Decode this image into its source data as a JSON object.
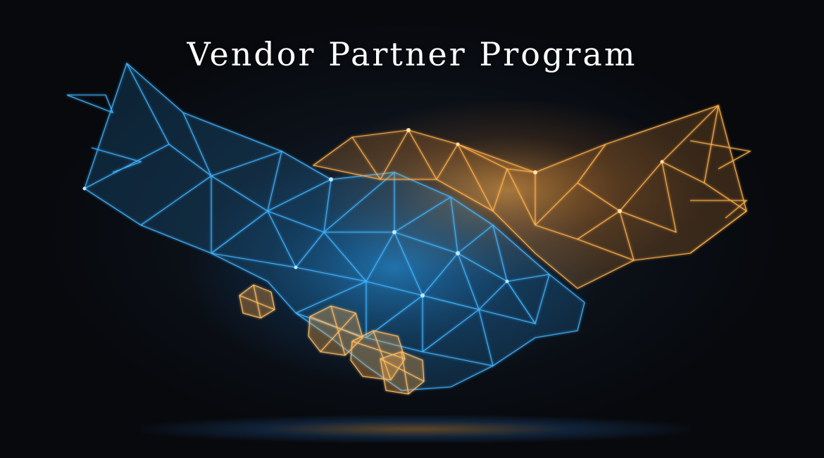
{
  "banner": {
    "title": "Vendor Partner Program"
  },
  "art": {
    "subject": "handshake-illustration",
    "left_hand_color": "#2ea8ff",
    "right_hand_color": "#ffb04a",
    "background_color": "#0b0f16"
  }
}
